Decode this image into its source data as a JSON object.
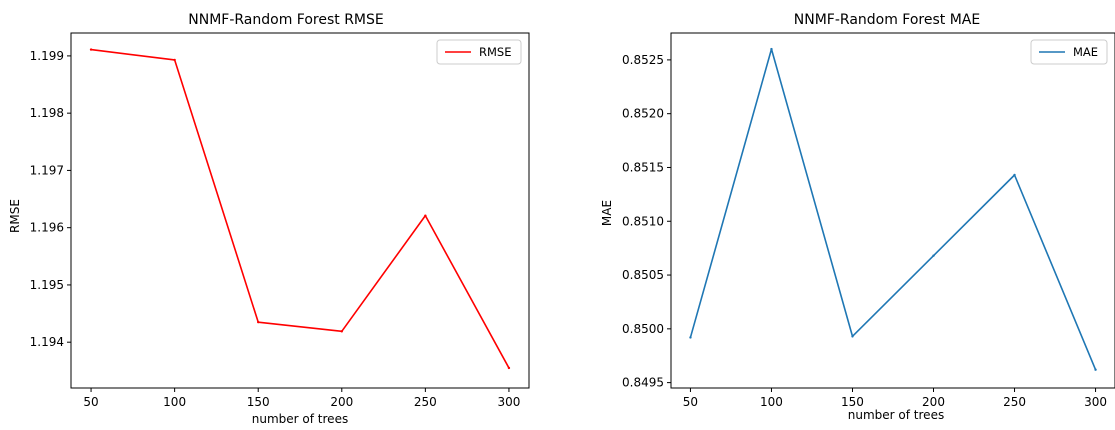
{
  "chart_data": [
    {
      "type": "line",
      "title": "NNMF-Random Forest RMSE",
      "xlabel": "number of trees",
      "ylabel": "RMSE",
      "x": [
        50,
        100,
        150,
        200,
        250,
        300
      ],
      "xticks": [
        "50",
        "100",
        "150",
        "200",
        "250",
        "300"
      ],
      "yticks": [
        "1.194",
        "1.195",
        "1.196",
        "1.197",
        "1.198",
        "1.199"
      ],
      "xlim": [
        38,
        312
      ],
      "ylim": [
        1.1932,
        1.1994
      ],
      "grid": false,
      "legend_position": "top-right",
      "series": [
        {
          "name": "RMSE",
          "color": "#ff0000",
          "values": [
            1.19911,
            1.19893,
            1.19435,
            1.19419,
            1.19621,
            1.19355
          ]
        }
      ]
    },
    {
      "type": "line",
      "title": "NNMF-Random Forest MAE",
      "xlabel": "number of trees",
      "ylabel": "MAE",
      "x": [
        50,
        100,
        150,
        200,
        250,
        300
      ],
      "xticks": [
        "50",
        "100",
        "150",
        "200",
        "250",
        "300"
      ],
      "yticks": [
        "0.8495",
        "0.8500",
        "0.8505",
        "0.8510",
        "0.8515",
        "0.8520",
        "0.8525"
      ],
      "xlim": [
        38,
        312
      ],
      "ylim": [
        0.84945,
        0.85275
      ],
      "grid": false,
      "legend_position": "top-right",
      "series": [
        {
          "name": "MAE",
          "color": "#1f77b4",
          "values": [
            0.84992,
            0.8526,
            0.84993,
            0.85068,
            0.85143,
            0.84962
          ]
        }
      ]
    }
  ]
}
